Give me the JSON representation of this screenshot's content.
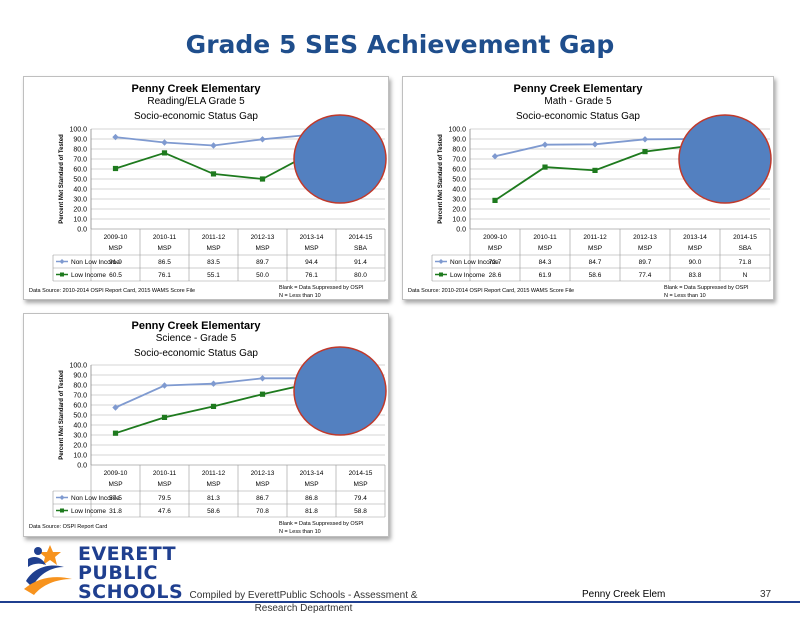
{
  "slide": {
    "title": "Grade 5 SES Achievement Gap",
    "footer_credit": "Compiled by EverettPublic Schools - Assessment & Research Department",
    "footer_school": "Penny Creek Elem",
    "page_number": "37",
    "logo_lines": [
      "EVERETT",
      "PUBLIC",
      "SCHOOLS"
    ]
  },
  "colors": {
    "non_low": "#7f9ad0",
    "low": "#1e7a1e",
    "ellipse": "#5380c0",
    "title": "#1f4e8c"
  },
  "chart_data": [
    {
      "type": "line",
      "title": [
        "Penny Creek Elementary",
        "Reading/ELA   Grade 5",
        "Socio-economic Status Gap"
      ],
      "ylabel": "Percent Met Standard of Tested",
      "ylim": [
        0,
        100
      ],
      "yticks": [
        "100.0",
        "90.0",
        "80.0",
        "70.0",
        "60.0",
        "50.0",
        "40.0",
        "30.0",
        "20.0",
        "10.0",
        "0.0"
      ],
      "categories": [
        [
          "2009-10",
          "MSP"
        ],
        [
          "2010-11",
          "MSP"
        ],
        [
          "2011-12",
          "MSP"
        ],
        [
          "2012-13",
          "MSP"
        ],
        [
          "2013-14",
          "MSP"
        ],
        [
          "2014-15",
          "SBA"
        ]
      ],
      "series": [
        {
          "name": "Non Low Income",
          "values": [
            91.9,
            86.5,
            83.5,
            89.7,
            94.4,
            91.4
          ],
          "table": [
            "91.9",
            "86.5",
            "83.5",
            "89.7",
            "94.4",
            "91.4"
          ]
        },
        {
          "name": "Low Income",
          "values": [
            60.5,
            76.1,
            55.1,
            50.0,
            76.1,
            80.0
          ],
          "table": [
            "60.5",
            "76.1",
            "55.1",
            "50.0",
            "76.1",
            "80.0"
          ]
        }
      ],
      "source": "Data Source: 2010-2014 OSPI Report Card, 2015 WAMS Score File",
      "notes": [
        "Blank = Data Suppressed by OSPI",
        "N = Less than 10"
      ]
    },
    {
      "type": "line",
      "title": [
        "Penny Creek Elementary",
        "Math - Grade 5",
        "Socio-economic Status Gap"
      ],
      "ylabel": "Percent Met Standard of Tested",
      "ylim": [
        0,
        100
      ],
      "yticks": [
        "100.0",
        "90.0",
        "80.0",
        "70.0",
        "60.0",
        "50.0",
        "40.0",
        "30.0",
        "20.0",
        "10.0",
        "0.0"
      ],
      "categories": [
        [
          "2009-10",
          "MSP"
        ],
        [
          "2010-11",
          "MSP"
        ],
        [
          "2011-12",
          "MSP"
        ],
        [
          "2012-13",
          "MSP"
        ],
        [
          "2013-14",
          "MSP"
        ],
        [
          "2014-15",
          "SBA"
        ]
      ],
      "series": [
        {
          "name": "Non Low Income",
          "values": [
            72.7,
            84.3,
            84.7,
            89.7,
            90.0,
            71.8
          ],
          "table": [
            "72.7",
            "84.3",
            "84.7",
            "89.7",
            "90.0",
            "71.8"
          ]
        },
        {
          "name": "Low Income",
          "values": [
            28.6,
            61.9,
            58.6,
            77.4,
            83.8,
            null
          ],
          "table": [
            "28.6",
            "61.9",
            "58.6",
            "77.4",
            "83.8",
            "N"
          ]
        }
      ],
      "source": "Data Source: 2010-2014 OSPI Report Card, 2015 WAMS Score File",
      "notes": [
        "Blank = Data Suppressed by OSPI",
        "N = Less than 10"
      ]
    },
    {
      "type": "line",
      "title": [
        "Penny Creek Elementary",
        "Science - Grade 5",
        "Socio-economic Status Gap"
      ],
      "ylabel": "Percent Met Standard of Tested",
      "ylim": [
        0,
        100
      ],
      "yticks": [
        "100.0",
        "90.0",
        "80.0",
        "70.0",
        "60.0",
        "50.0",
        "40.0",
        "30.0",
        "20.0",
        "10.0",
        "0.0"
      ],
      "categories": [
        [
          "2009-10",
          "MSP"
        ],
        [
          "2010-11",
          "MSP"
        ],
        [
          "2011-12",
          "MSP"
        ],
        [
          "2012-13",
          "MSP"
        ],
        [
          "2013-14",
          "MSP"
        ],
        [
          "2014-15",
          "MSP"
        ]
      ],
      "series": [
        {
          "name": "Non Low Income",
          "values": [
            57.5,
            79.5,
            81.3,
            86.7,
            86.8,
            79.4
          ],
          "table": [
            "57.5",
            "79.5",
            "81.3",
            "86.7",
            "86.8",
            "79.4"
          ]
        },
        {
          "name": "Low Income",
          "values": [
            31.8,
            47.6,
            58.6,
            70.8,
            81.8,
            58.8
          ],
          "table": [
            "31.8",
            "47.6",
            "58.6",
            "70.8",
            "81.8",
            "58.8"
          ]
        }
      ],
      "source": "Data Source: OSPI Report Card",
      "notes": [
        "Blank = Data Suppressed by OSPI",
        "N = Less than 10"
      ]
    }
  ]
}
